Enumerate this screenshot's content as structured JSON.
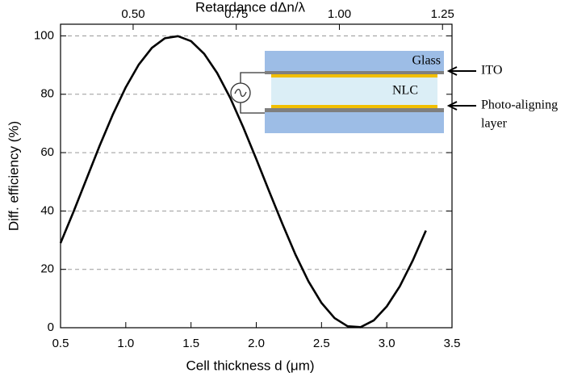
{
  "chart_data": {
    "type": "line",
    "x_label": "Cell thickness d (μm)",
    "y_label": "Diff. efficiency (%)",
    "x2_label": "Retardance dΔn/λ",
    "x": [
      0.5,
      0.6,
      0.7,
      0.8,
      0.9,
      1.0,
      1.1,
      1.2,
      1.3,
      1.4,
      1.5,
      1.6,
      1.7,
      1.8,
      1.9,
      2.0,
      2.1,
      2.2,
      2.3,
      2.4,
      2.5,
      2.6,
      2.7,
      2.8,
      2.9,
      3.0,
      3.1,
      3.2,
      3.3
    ],
    "series": [
      {
        "color": "#000000",
        "values": [
          29.0,
          39.8,
          51.1,
          62.4,
          73.0,
          82.4,
          90.2,
          95.9,
          99.2,
          99.9,
          98.2,
          93.9,
          87.3,
          78.8,
          68.7,
          57.8,
          46.6,
          35.6,
          25.1,
          15.9,
          8.5,
          3.3,
          0.5,
          0.2,
          2.5,
          7.3,
          14.2,
          23.1,
          33.3
        ]
      }
    ],
    "xlim": [
      0.5,
      3.5
    ],
    "xticks": [
      0.5,
      {
        "value": 1,
        "label": "1.0"
      },
      1.5,
      {
        "value": 2,
        "label": "2.0"
      },
      2.5,
      {
        "value": 3,
        "label": "3.0"
      },
      3.5
    ],
    "ylim": [
      0,
      104
    ],
    "yticks": [
      0,
      20,
      40,
      60,
      80,
      100
    ],
    "x2lim": [
      0.324,
      1.273
    ],
    "x2ticks": [
      {
        "value": 0.5,
        "label": "0.50"
      },
      0.75,
      {
        "value": 1,
        "label": "1.00"
      },
      1.25
    ],
    "grid": true,
    "annotations": [
      "Glass",
      "ITO",
      "NLC",
      "Photo-aligning",
      "layer"
    ]
  }
}
